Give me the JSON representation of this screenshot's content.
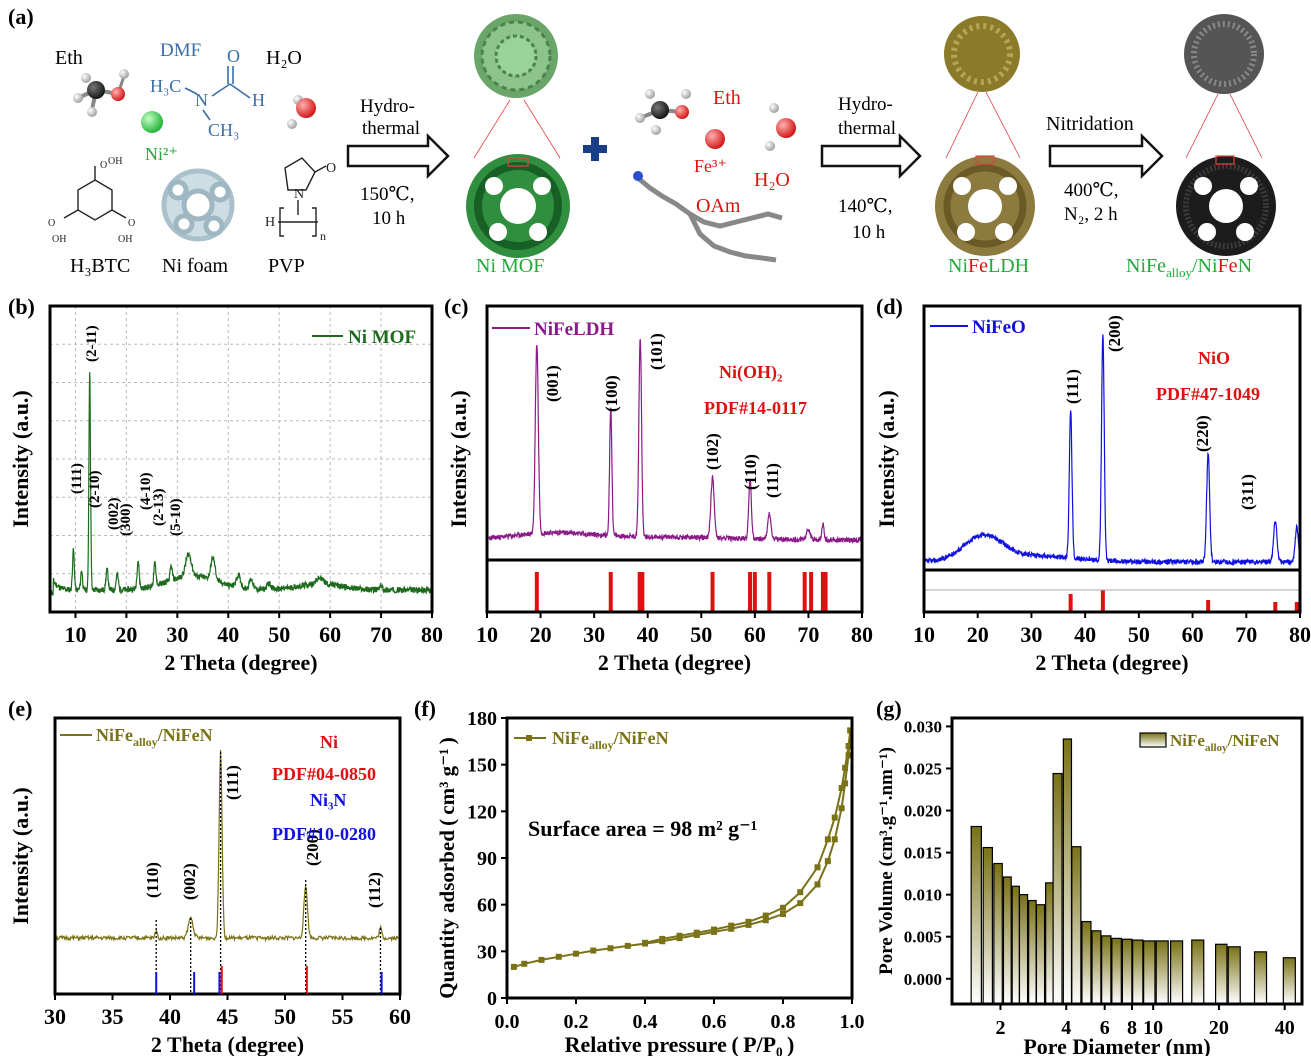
{
  "colors": {
    "mof": "#1e6b1e",
    "ldh": "#8b1a89",
    "oxide": "#1010e0",
    "nitride": "#7a7216",
    "red": "#e01010",
    "blue": "#1010e0",
    "green_label": "#1faa3a",
    "dmf": "#3a6ea8"
  },
  "scheme": {
    "panel_label": "(a)",
    "reagents1": [
      "Eth",
      "DMF",
      "H₂O"
    ],
    "ni_ion": "Ni²⁺",
    "dmf_structure": {
      "h3c_top": "H₃C",
      "n": "N",
      "h": "H",
      "ch3": "CH₃",
      "o": "O"
    },
    "bottom1": [
      "H₃BTC",
      "Ni foam",
      "PVP"
    ],
    "arrow1_top": [
      "Hydro-",
      "thermal"
    ],
    "arrow1_bottom": [
      "150℃,",
      "10 h"
    ],
    "ni_mof": "Ni MOF",
    "reagents2": [
      "Eth",
      "Fe³⁺",
      "H₂O",
      "OAm"
    ],
    "arrow2_top": [
      "Hydro-",
      "thermal"
    ],
    "arrow2_bottom": [
      "140℃,",
      "10 h"
    ],
    "ldh_parts": [
      "Ni",
      "Fe",
      "LDH"
    ],
    "arrow3_top": "Nitridation",
    "arrow3_bottom": [
      "400℃,",
      "N₂, 2 h"
    ],
    "final_parts": [
      "NiFe",
      "alloy",
      "/Ni",
      "Fe",
      "N"
    ]
  },
  "chart_data": [
    {
      "id": "b",
      "panel_label": "(b)",
      "type": "line",
      "xlabel": "2 Theta (degree)",
      "ylabel": "Intensity (a.u.)",
      "xlim": [
        5,
        80
      ],
      "xticks": [
        10,
        20,
        30,
        40,
        50,
        60,
        70,
        80
      ],
      "legend": "Ni MOF",
      "legend_position": "top-right",
      "grid": true,
      "peaks": [
        {
          "x": 9.6,
          "label": "(111)"
        },
        {
          "x": 11.2,
          "label": "(2-10)"
        },
        {
          "x": 12.8,
          "label": "(2-11)"
        },
        {
          "x": 16.2,
          "label": "(002)"
        },
        {
          "x": 18.2,
          "label": "(300)"
        },
        {
          "x": 22.3,
          "label": "(4-10)"
        },
        {
          "x": 25.6,
          "label": "(2-13)"
        },
        {
          "x": 28.8,
          "label": "(5-10)"
        }
      ]
    },
    {
      "id": "c",
      "panel_label": "(c)",
      "type": "line",
      "xlabel": "2 Theta (degree)",
      "ylabel": "Intensity (a.u.)",
      "xlim": [
        10,
        80
      ],
      "xticks": [
        10,
        20,
        30,
        40,
        50,
        60,
        70,
        80
      ],
      "legend": "NiFeLDH",
      "legend_position": "top-left",
      "reference": "Ni(OH)₂",
      "pdf": "PDF#14-0117",
      "peaks": [
        {
          "x": 19.3,
          "label": "(001)"
        },
        {
          "x": 33.1,
          "label": "(100)"
        },
        {
          "x": 38.6,
          "label": "(101)"
        },
        {
          "x": 52.1,
          "label": "(102)"
        },
        {
          "x": 59.1,
          "label": "(110)"
        },
        {
          "x": 62.7,
          "label": "(111)"
        }
      ],
      "ref_lines": [
        19.3,
        33.1,
        38.5,
        39.0,
        52.1,
        59.1,
        60.0,
        62.7,
        69.3,
        70.5,
        72.7,
        73.2
      ]
    },
    {
      "id": "d",
      "panel_label": "(d)",
      "type": "line",
      "xlabel": "2 Theta (degree)",
      "ylabel": "Intensity (a.u.)",
      "xlim": [
        10,
        80
      ],
      "xticks": [
        10,
        20,
        30,
        40,
        50,
        60,
        70,
        80
      ],
      "legend": "NiFeO",
      "legend_position": "top-left",
      "reference": "NiO",
      "pdf": "PDF#47-1049",
      "peaks": [
        {
          "x": 37.3,
          "label": "(111)"
        },
        {
          "x": 43.3,
          "label": "(200)"
        },
        {
          "x": 62.9,
          "label": "(220)"
        },
        {
          "x": 75.4,
          "label": "(311)"
        }
      ],
      "ref_lines": [
        37.3,
        43.3,
        62.9,
        75.4,
        79.4
      ]
    },
    {
      "id": "e",
      "panel_label": "(e)",
      "type": "line",
      "xlabel": "2 Theta (degree)",
      "ylabel": "Intensity (a.u.)",
      "xlim": [
        30,
        60
      ],
      "xticks": [
        30,
        35,
        40,
        45,
        50,
        55,
        60
      ],
      "legend_parts": [
        "NiFe",
        "alloy",
        "/NiFeN"
      ],
      "legend_position": "top-left",
      "ref1": "Ni",
      "pdf1": "PDF#04-0850",
      "ref2": "Ni₃N",
      "pdf2": "PDF#10-0280",
      "peaks": [
        {
          "x": 38.8,
          "label": "(110)"
        },
        {
          "x": 41.8,
          "label": "(002)"
        },
        {
          "x": 44.4,
          "label": "(111)"
        },
        {
          "x": 51.8,
          "label": "(200)"
        },
        {
          "x": 58.3,
          "label": "(112)"
        }
      ],
      "ni_lines": [
        44.5,
        51.9
      ],
      "ni3n_lines": [
        38.8,
        42.1,
        44.3,
        58.4
      ]
    },
    {
      "id": "f",
      "panel_label": "(f)",
      "type": "line",
      "xlabel": "Relative pressure ( P/P₀ )",
      "ylabel": "Quantity adsorbed ( cm³ g⁻¹ )",
      "xlim": [
        0,
        1
      ],
      "ylim": [
        0,
        180
      ],
      "xticks": [
        0.0,
        0.2,
        0.4,
        0.6,
        0.8,
        1.0
      ],
      "yticks": [
        0,
        30,
        60,
        90,
        120,
        150,
        180
      ],
      "legend_parts": [
        "NiFe",
        "alloy",
        "/NiFeN"
      ],
      "legend_position": "top-left",
      "annotation": "Surface area = 98 m² g⁻¹",
      "series": [
        {
          "name": "adsorption",
          "x": [
            0.02,
            0.05,
            0.1,
            0.15,
            0.2,
            0.25,
            0.3,
            0.35,
            0.4,
            0.45,
            0.5,
            0.55,
            0.6,
            0.65,
            0.7,
            0.75,
            0.8,
            0.85,
            0.9,
            0.93,
            0.95,
            0.97,
            0.98,
            0.99,
            0.995
          ],
          "y": [
            20,
            22,
            24.5,
            26.5,
            28.5,
            30.5,
            32,
            33.5,
            35,
            36.5,
            38.5,
            40.5,
            42.5,
            44.5,
            47,
            50,
            54,
            61,
            73,
            88,
            102,
            122,
            138,
            156,
            172
          ]
        },
        {
          "name": "desorption",
          "x": [
            0.995,
            0.99,
            0.98,
            0.97,
            0.95,
            0.93,
            0.9,
            0.85,
            0.8,
            0.75,
            0.7,
            0.65,
            0.6,
            0.55,
            0.5,
            0.45,
            0.4
          ],
          "y": [
            172,
            162,
            148,
            135,
            116,
            102,
            84,
            68,
            58,
            53,
            49,
            46.5,
            44,
            42,
            40,
            38,
            35.5
          ]
        }
      ]
    },
    {
      "id": "g",
      "panel_label": "(g)",
      "type": "bar",
      "xlabel": "Pore Diameter (nm)",
      "ylabel": "Pore Volume (cm³.g⁻¹.nm⁻¹)",
      "xscale": "log",
      "xlim": [
        1.2,
        48
      ],
      "ylim": [
        -0.003,
        0.031
      ],
      "xticks": [
        2,
        4,
        6,
        8,
        10,
        20,
        40
      ],
      "yticks": [
        0.0,
        0.005,
        0.01,
        0.015,
        0.02,
        0.025,
        0.03
      ],
      "legend_parts": [
        "NiFe",
        "alloy",
        "/NiFeN"
      ],
      "legend_position": "top-right",
      "bars": [
        {
          "x": 1.55,
          "y": 0.0181
        },
        {
          "x": 1.75,
          "y": 0.0156
        },
        {
          "x": 1.95,
          "y": 0.0137
        },
        {
          "x": 2.15,
          "y": 0.0121
        },
        {
          "x": 2.35,
          "y": 0.011
        },
        {
          "x": 2.55,
          "y": 0.01
        },
        {
          "x": 2.8,
          "y": 0.0093
        },
        {
          "x": 3.05,
          "y": 0.0088
        },
        {
          "x": 3.35,
          "y": 0.0114
        },
        {
          "x": 3.65,
          "y": 0.0244
        },
        {
          "x": 4.05,
          "y": 0.0285
        },
        {
          "x": 4.45,
          "y": 0.0157
        },
        {
          "x": 4.95,
          "y": 0.0068
        },
        {
          "x": 5.5,
          "y": 0.0057
        },
        {
          "x": 6.1,
          "y": 0.0051
        },
        {
          "x": 6.8,
          "y": 0.0048
        },
        {
          "x": 7.6,
          "y": 0.0047
        },
        {
          "x": 8.5,
          "y": 0.0046
        },
        {
          "x": 9.6,
          "y": 0.0045
        },
        {
          "x": 11.0,
          "y": 0.0045
        },
        {
          "x": 12.8,
          "y": 0.0045
        },
        {
          "x": 16.0,
          "y": 0.0046
        },
        {
          "x": 20.5,
          "y": 0.0041
        },
        {
          "x": 23.5,
          "y": 0.0038
        },
        {
          "x": 31.0,
          "y": 0.0032
        },
        {
          "x": 42.0,
          "y": 0.0025
        }
      ]
    }
  ]
}
